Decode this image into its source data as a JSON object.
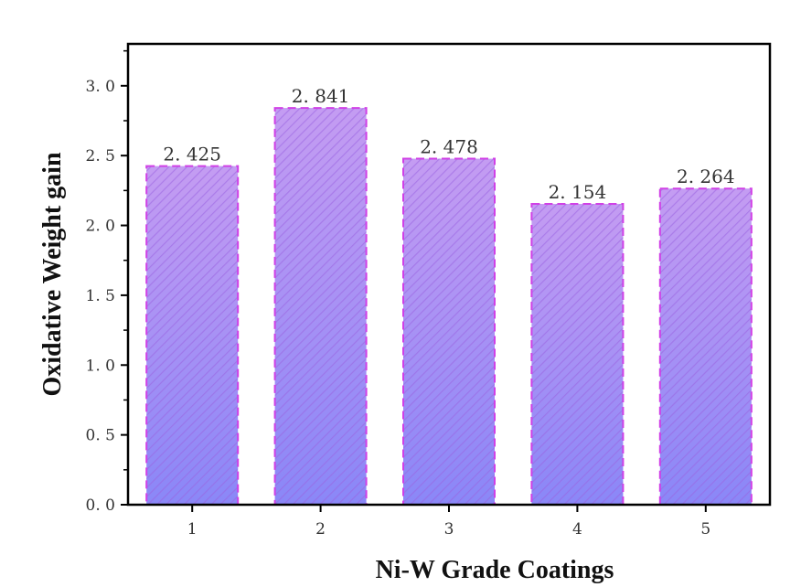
{
  "chart_data": {
    "type": "bar",
    "categories": [
      "1",
      "2",
      "3",
      "4",
      "5"
    ],
    "values": [
      2.425,
      2.841,
      2.478,
      2.154,
      2.264
    ],
    "data_labels": [
      "2. 425",
      "2. 841",
      "2. 478",
      "2. 154",
      "2. 264"
    ],
    "xlabel": "Ni-W Grade Coatings",
    "ylabel": "Oxidative Weight gain",
    "ylim": [
      0,
      3.3
    ],
    "y_ticks": [
      0.0,
      0.5,
      1.0,
      1.5,
      2.0,
      2.5,
      3.0
    ],
    "y_tick_labels": [
      "0. 0",
      "0. 5",
      "1. 0",
      "1. 5",
      "2. 0",
      "2. 5",
      "3. 0"
    ],
    "grid": false,
    "colors": {
      "bar_fill_top": "#c49cf2",
      "bar_fill_bottom": "#8a87f7",
      "bar_edge": "#d040e6",
      "hatch": "#9a62e0",
      "axis": "#000000"
    }
  }
}
